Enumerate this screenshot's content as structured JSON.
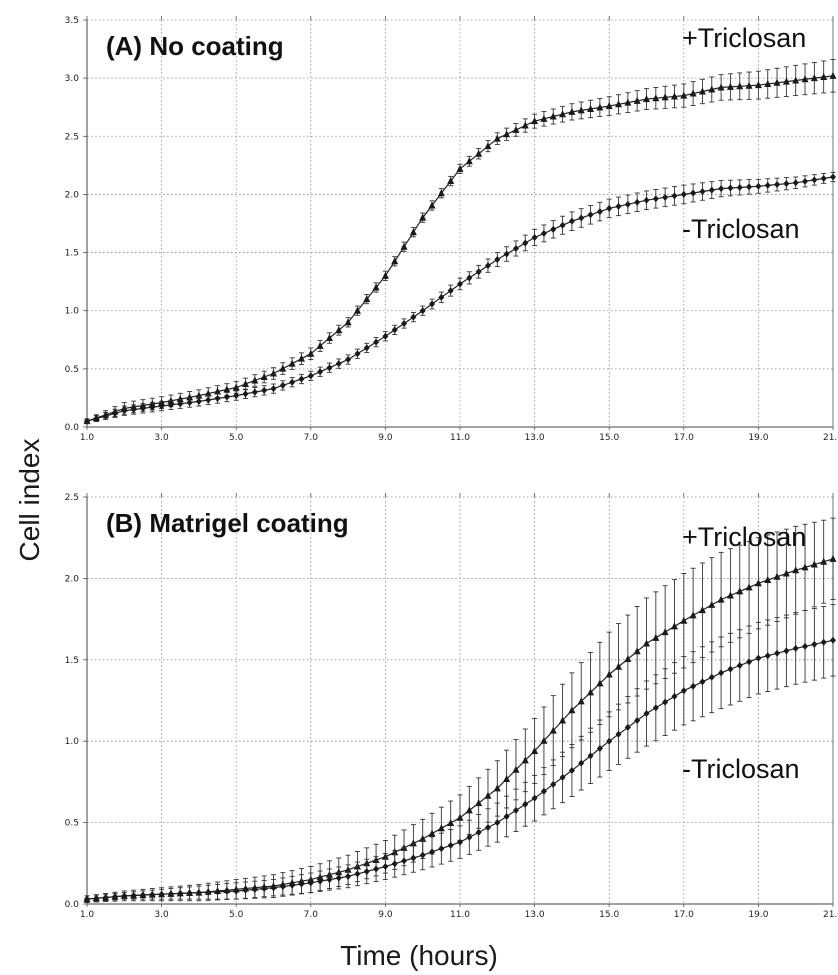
{
  "figure": {
    "ylabel": "Cell index",
    "xlabel": "Time (hours)"
  },
  "chart_data": [
    {
      "type": "line",
      "title": "(A) No coating",
      "xlabel": "Time (hours)",
      "ylabel": "Cell index",
      "xlim": [
        1.0,
        21.0
      ],
      "ylim": [
        0.0,
        3.5
      ],
      "xticks": [
        "1.0",
        "3.0",
        "5.0",
        "7.0",
        "9.0",
        "11.0",
        "13.0",
        "15.0",
        "17.0",
        "19.0",
        "21.0"
      ],
      "yticks": [
        "0.0",
        "0.5",
        "1.0",
        "1.5",
        "2.0",
        "2.5",
        "3.0",
        "3.5"
      ],
      "grid": true,
      "x": [
        1,
        2,
        3,
        4,
        5,
        6,
        7,
        8,
        9,
        10,
        11,
        12,
        13,
        14,
        15,
        16,
        17,
        18,
        19,
        20,
        21
      ],
      "series": [
        {
          "name": "+Triclosan",
          "marker": "triangle",
          "values": [
            0.05,
            0.16,
            0.21,
            0.27,
            0.34,
            0.46,
            0.63,
            0.9,
            1.3,
            1.8,
            2.22,
            2.48,
            2.63,
            2.71,
            2.76,
            2.82,
            2.85,
            2.92,
            2.94,
            2.98,
            3.02
          ],
          "errors": [
            0.02,
            0.05,
            0.05,
            0.05,
            0.05,
            0.05,
            0.05,
            0.04,
            0.04,
            0.04,
            0.04,
            0.05,
            0.06,
            0.07,
            0.08,
            0.09,
            0.1,
            0.11,
            0.12,
            0.13,
            0.14
          ]
        },
        {
          "name": "-Triclosan",
          "marker": "diamond",
          "values": [
            0.05,
            0.14,
            0.18,
            0.22,
            0.27,
            0.33,
            0.44,
            0.58,
            0.78,
            1.0,
            1.23,
            1.44,
            1.63,
            1.77,
            1.88,
            1.95,
            2.0,
            2.05,
            2.07,
            2.1,
            2.15
          ],
          "errors": [
            0.02,
            0.04,
            0.04,
            0.04,
            0.04,
            0.04,
            0.04,
            0.04,
            0.04,
            0.04,
            0.05,
            0.06,
            0.07,
            0.08,
            0.08,
            0.08,
            0.08,
            0.07,
            0.06,
            0.05,
            0.04
          ]
        }
      ]
    },
    {
      "type": "line",
      "title": "(B) Matrigel coating",
      "xlabel": "Time (hours)",
      "ylabel": "Cell index",
      "xlim": [
        1.0,
        21.0
      ],
      "ylim": [
        0.0,
        2.5
      ],
      "xticks": [
        "1.0",
        "3.0",
        "5.0",
        "7.0",
        "9.0",
        "11.0",
        "13.0",
        "15.0",
        "17.0",
        "19.0",
        "21.0"
      ],
      "yticks": [
        "0.0",
        "0.5",
        "1.0",
        "1.5",
        "2.0",
        "2.5"
      ],
      "grid": true,
      "x": [
        1,
        2,
        3,
        4,
        5,
        6,
        7,
        8,
        9,
        10,
        11,
        12,
        13,
        14,
        15,
        16,
        17,
        18,
        19,
        20,
        21
      ],
      "series": [
        {
          "name": "+Triclosan",
          "marker": "triangle",
          "values": [
            0.03,
            0.05,
            0.06,
            0.07,
            0.09,
            0.11,
            0.15,
            0.21,
            0.29,
            0.4,
            0.53,
            0.71,
            0.94,
            1.19,
            1.41,
            1.6,
            1.74,
            1.87,
            1.97,
            2.05,
            2.12
          ],
          "errors": [
            0.02,
            0.03,
            0.04,
            0.05,
            0.06,
            0.07,
            0.08,
            0.09,
            0.1,
            0.12,
            0.14,
            0.17,
            0.2,
            0.23,
            0.26,
            0.28,
            0.29,
            0.29,
            0.28,
            0.27,
            0.25
          ]
        },
        {
          "name": "-Triclosan",
          "marker": "diamond",
          "values": [
            0.03,
            0.05,
            0.06,
            0.07,
            0.08,
            0.1,
            0.13,
            0.17,
            0.23,
            0.3,
            0.38,
            0.5,
            0.65,
            0.82,
            1.0,
            1.17,
            1.31,
            1.42,
            1.51,
            1.57,
            1.62
          ],
          "errors": [
            0.02,
            0.02,
            0.03,
            0.04,
            0.05,
            0.05,
            0.06,
            0.07,
            0.08,
            0.09,
            0.1,
            0.12,
            0.14,
            0.16,
            0.18,
            0.2,
            0.21,
            0.22,
            0.22,
            0.22,
            0.22
          ]
        }
      ]
    }
  ]
}
